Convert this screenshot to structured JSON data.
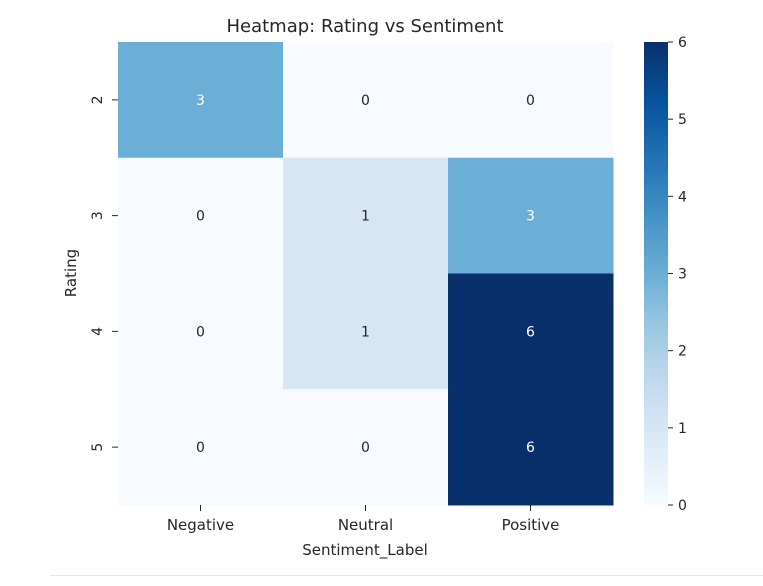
{
  "chart_data": {
    "type": "heatmap",
    "title": "Heatmap: Rating vs Sentiment",
    "xlabel": "Sentiment_Label",
    "ylabel": "Rating",
    "x_categories": [
      "Negative",
      "Neutral",
      "Positive"
    ],
    "y_categories": [
      "2",
      "3",
      "4",
      "5"
    ],
    "values": [
      [
        3,
        0,
        0
      ],
      [
        0,
        1,
        3
      ],
      [
        0,
        1,
        6
      ],
      [
        0,
        0,
        6
      ]
    ],
    "annotations": true,
    "colormap": "Blues",
    "colorbar": {
      "range": [
        0,
        6
      ],
      "ticks": [
        "0",
        "1",
        "2",
        "3",
        "4",
        "5",
        "6"
      ]
    },
    "colors": {
      "low": "#f7fbff",
      "high": "#08306b"
    }
  }
}
